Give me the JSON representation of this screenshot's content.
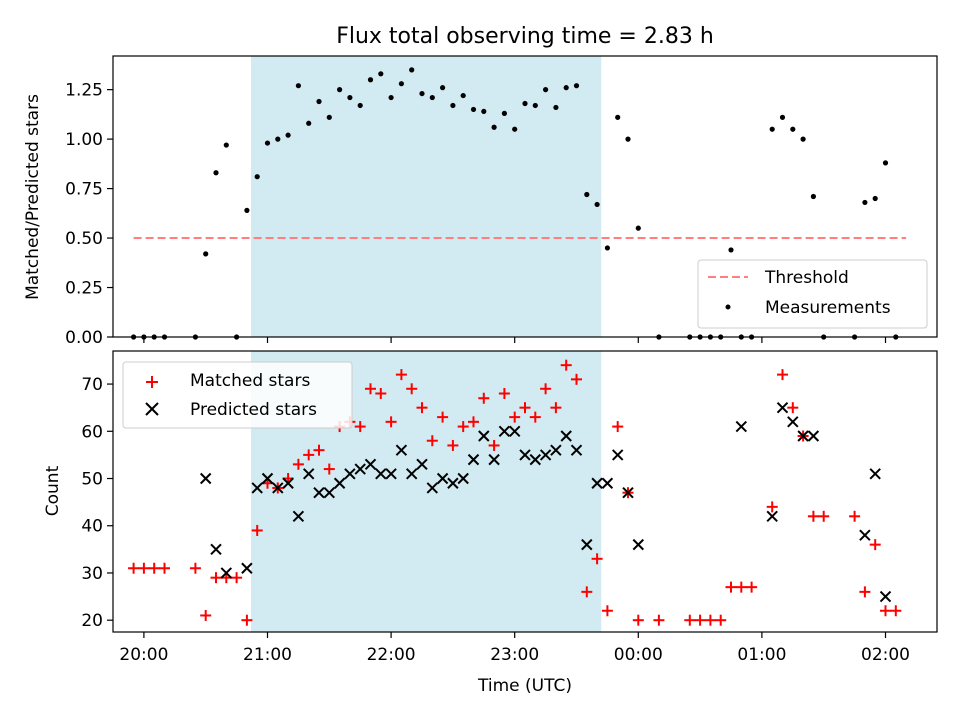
{
  "title": "Flux total observing time = 2.83 h",
  "chart_data": [
    {
      "type": "scatter",
      "panel": "top",
      "ylabel": "Matched/Predicted stars",
      "xlabel": "",
      "x_unit": "time (UTC)",
      "xlim": [
        "19:45",
        "02:25"
      ],
      "ylim": [
        0,
        1.42
      ],
      "yticks": [
        0.0,
        0.25,
        0.5,
        0.75,
        1.0,
        1.25
      ],
      "ytick_labels": [
        "0.00",
        "0.25",
        "0.50",
        "0.75",
        "1.00",
        "1.25"
      ],
      "shaded_span": [
        "20:52",
        "23:42"
      ],
      "shade_color": "#add8e6",
      "legend_position": "lower right",
      "threshold": {
        "name": "Threshold",
        "value": 0.5,
        "x_range": [
          "19:55",
          "02:10"
        ],
        "color": "#ff7f7f",
        "style": "dashed"
      },
      "series": [
        {
          "name": "Measurements",
          "marker": "dot",
          "color": "#000000",
          "points": [
            [
              "19:55",
              0.0
            ],
            [
              "20:00",
              0.0
            ],
            [
              "20:05",
              0.0
            ],
            [
              "20:10",
              0.0
            ],
            [
              "20:25",
              0.0
            ],
            [
              "20:30",
              0.42
            ],
            [
              "20:35",
              0.83
            ],
            [
              "20:40",
              0.97
            ],
            [
              "20:45",
              0.0
            ],
            [
              "20:50",
              0.64
            ],
            [
              "20:55",
              0.81
            ],
            [
              "21:00",
              0.98
            ],
            [
              "21:05",
              1.0
            ],
            [
              "21:10",
              1.02
            ],
            [
              "21:15",
              1.27
            ],
            [
              "21:20",
              1.08
            ],
            [
              "21:25",
              1.19
            ],
            [
              "21:30",
              1.11
            ],
            [
              "21:35",
              1.25
            ],
            [
              "21:40",
              1.21
            ],
            [
              "21:45",
              1.17
            ],
            [
              "21:50",
              1.3
            ],
            [
              "21:55",
              1.33
            ],
            [
              "22:00",
              1.21
            ],
            [
              "22:05",
              1.28
            ],
            [
              "22:10",
              1.35
            ],
            [
              "22:15",
              1.23
            ],
            [
              "22:20",
              1.21
            ],
            [
              "22:25",
              1.26
            ],
            [
              "22:30",
              1.17
            ],
            [
              "22:35",
              1.22
            ],
            [
              "22:40",
              1.15
            ],
            [
              "22:45",
              1.14
            ],
            [
              "22:50",
              1.06
            ],
            [
              "22:55",
              1.13
            ],
            [
              "23:00",
              1.05
            ],
            [
              "23:05",
              1.18
            ],
            [
              "23:10",
              1.17
            ],
            [
              "23:15",
              1.25
            ],
            [
              "23:20",
              1.16
            ],
            [
              "23:25",
              1.26
            ],
            [
              "23:30",
              1.27
            ],
            [
              "23:35",
              0.72
            ],
            [
              "23:40",
              0.67
            ],
            [
              "23:45",
              0.45
            ],
            [
              "23:50",
              1.11
            ],
            [
              "23:55",
              1.0
            ],
            [
              "00:00",
              0.55
            ],
            [
              "00:10",
              0.0
            ],
            [
              "00:25",
              0.0
            ],
            [
              "00:30",
              0.0
            ],
            [
              "00:35",
              0.0
            ],
            [
              "00:40",
              0.0
            ],
            [
              "00:45",
              0.44
            ],
            [
              "00:50",
              0.0
            ],
            [
              "00:55",
              0.0
            ],
            [
              "01:05",
              1.05
            ],
            [
              "01:10",
              1.11
            ],
            [
              "01:15",
              1.05
            ],
            [
              "01:20",
              1.0
            ],
            [
              "01:25",
              0.71
            ],
            [
              "01:30",
              0.0
            ],
            [
              "01:45",
              0.0
            ],
            [
              "01:50",
              0.68
            ],
            [
              "01:55",
              0.7
            ],
            [
              "02:00",
              0.88
            ],
            [
              "02:05",
              0.0
            ]
          ]
        }
      ]
    },
    {
      "type": "scatter",
      "panel": "bottom",
      "ylabel": "Count",
      "xlabel": "Time (UTC)",
      "x_unit": "time (UTC)",
      "xlim": [
        "19:45",
        "02:25"
      ],
      "ylim": [
        17.5,
        77
      ],
      "yticks": [
        20,
        30,
        40,
        50,
        60,
        70
      ],
      "ytick_labels": [
        "20",
        "30",
        "40",
        "50",
        "60",
        "70"
      ],
      "xticks": [
        "20:00",
        "21:00",
        "22:00",
        "23:00",
        "00:00",
        "01:00",
        "02:00"
      ],
      "xtick_labels": [
        "20:00",
        "21:00",
        "22:00",
        "23:00",
        "00:00",
        "01:00",
        "02:00"
      ],
      "shaded_span": [
        "20:52",
        "23:42"
      ],
      "legend_position": "upper left",
      "series": [
        {
          "name": "Matched stars",
          "marker": "plus",
          "color": "#ff0000",
          "points": [
            [
              "19:55",
              31
            ],
            [
              "20:00",
              31
            ],
            [
              "20:05",
              31
            ],
            [
              "20:10",
              31
            ],
            [
              "20:25",
              31
            ],
            [
              "20:30",
              21
            ],
            [
              "20:35",
              29
            ],
            [
              "20:40",
              29
            ],
            [
              "20:45",
              29
            ],
            [
              "20:50",
              20
            ],
            [
              "20:55",
              39
            ],
            [
              "21:00",
              49
            ],
            [
              "21:05",
              48
            ],
            [
              "21:10",
              50
            ],
            [
              "21:15",
              53
            ],
            [
              "21:20",
              55
            ],
            [
              "21:25",
              56
            ],
            [
              "21:30",
              52
            ],
            [
              "21:35",
              61
            ],
            [
              "21:40",
              62
            ],
            [
              "21:45",
              61
            ],
            [
              "21:50",
              69
            ],
            [
              "21:55",
              68
            ],
            [
              "22:00",
              62
            ],
            [
              "22:05",
              72
            ],
            [
              "22:10",
              69
            ],
            [
              "22:15",
              65
            ],
            [
              "22:20",
              58
            ],
            [
              "22:25",
              63
            ],
            [
              "22:30",
              57
            ],
            [
              "22:35",
              61
            ],
            [
              "22:40",
              62
            ],
            [
              "22:45",
              67
            ],
            [
              "22:50",
              57
            ],
            [
              "22:55",
              68
            ],
            [
              "23:00",
              63
            ],
            [
              "23:05",
              65
            ],
            [
              "23:10",
              63
            ],
            [
              "23:15",
              69
            ],
            [
              "23:20",
              65
            ],
            [
              "23:25",
              74
            ],
            [
              "23:30",
              71
            ],
            [
              "23:35",
              26
            ],
            [
              "23:40",
              33
            ],
            [
              "23:45",
              22
            ],
            [
              "23:50",
              61
            ],
            [
              "23:55",
              47
            ],
            [
              "00:00",
              20
            ],
            [
              "00:10",
              20
            ],
            [
              "00:25",
              20
            ],
            [
              "00:30",
              20
            ],
            [
              "00:35",
              20
            ],
            [
              "00:40",
              20
            ],
            [
              "00:45",
              27
            ],
            [
              "00:50",
              27
            ],
            [
              "00:55",
              27
            ],
            [
              "01:05",
              44
            ],
            [
              "01:10",
              72
            ],
            [
              "01:15",
              65
            ],
            [
              "01:20",
              59
            ],
            [
              "01:25",
              42
            ],
            [
              "01:30",
              42
            ],
            [
              "01:45",
              42
            ],
            [
              "01:50",
              26
            ],
            [
              "01:55",
              36
            ],
            [
              "02:00",
              22
            ],
            [
              "02:05",
              22
            ]
          ]
        },
        {
          "name": "Predicted stars",
          "marker": "x",
          "color": "#000000",
          "points": [
            [
              "20:30",
              50
            ],
            [
              "20:35",
              35
            ],
            [
              "20:40",
              30
            ],
            [
              "20:50",
              31
            ],
            [
              "20:55",
              48
            ],
            [
              "21:00",
              50
            ],
            [
              "21:05",
              48
            ],
            [
              "21:10",
              49
            ],
            [
              "21:15",
              42
            ],
            [
              "21:20",
              51
            ],
            [
              "21:25",
              47
            ],
            [
              "21:30",
              47
            ],
            [
              "21:35",
              49
            ],
            [
              "21:40",
              51
            ],
            [
              "21:45",
              52
            ],
            [
              "21:50",
              53
            ],
            [
              "21:55",
              51
            ],
            [
              "22:00",
              51
            ],
            [
              "22:05",
              56
            ],
            [
              "22:10",
              51
            ],
            [
              "22:15",
              53
            ],
            [
              "22:20",
              48
            ],
            [
              "22:25",
              50
            ],
            [
              "22:30",
              49
            ],
            [
              "22:35",
              50
            ],
            [
              "22:40",
              54
            ],
            [
              "22:45",
              59
            ],
            [
              "22:50",
              54
            ],
            [
              "22:55",
              60
            ],
            [
              "23:00",
              60
            ],
            [
              "23:05",
              55
            ],
            [
              "23:10",
              54
            ],
            [
              "23:15",
              55
            ],
            [
              "23:20",
              56
            ],
            [
              "23:25",
              59
            ],
            [
              "23:30",
              56
            ],
            [
              "23:35",
              36
            ],
            [
              "23:40",
              49
            ],
            [
              "23:45",
              49
            ],
            [
              "23:50",
              55
            ],
            [
              "23:55",
              47
            ],
            [
              "00:00",
              36
            ],
            [
              "00:50",
              61
            ],
            [
              "01:05",
              42
            ],
            [
              "01:10",
              65
            ],
            [
              "01:15",
              62
            ],
            [
              "01:20",
              59
            ],
            [
              "01:25",
              59
            ],
            [
              "01:50",
              38
            ],
            [
              "01:55",
              51
            ],
            [
              "02:00",
              25
            ]
          ]
        }
      ]
    }
  ]
}
